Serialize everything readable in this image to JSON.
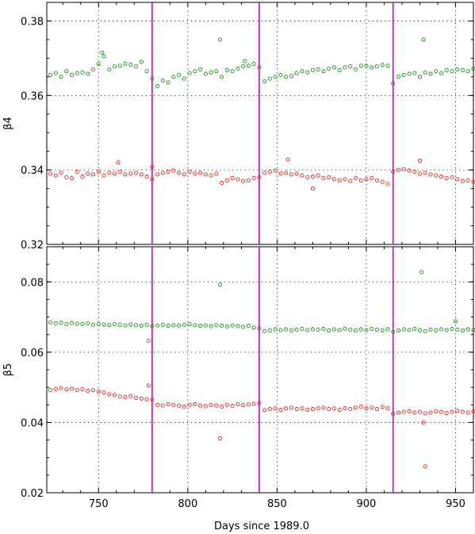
{
  "chart_data": {
    "type": "scatter",
    "xlabel": "Days since 1989.0",
    "xlim": [
      721,
      960
    ],
    "xticks": [
      750,
      800,
      850,
      900,
      950
    ],
    "vlines": [
      780,
      840,
      915
    ],
    "colors": {
      "green": "#1a8c1a",
      "red": "#e8201a",
      "vline": "#d000d0"
    },
    "panels": [
      {
        "ylabel": "β4",
        "ylim": [
          0.32,
          0.385
        ],
        "yticks": [
          "0.32",
          "0.34",
          "0.36",
          "0.38"
        ],
        "series": [
          {
            "color": "green",
            "x": [
              723,
              726,
              729,
              732,
              735,
              738,
              741,
              744,
              747,
              750,
              753,
              756,
              759,
              762,
              765,
              768,
              771,
              774,
              777,
              780,
              783,
              786,
              789,
              792,
              795,
              798,
              801,
              804,
              807,
              810,
              813,
              816,
              819,
              822,
              825,
              828,
              831,
              834,
              837,
              840,
              843,
              846,
              849,
              852,
              855,
              858,
              861,
              864,
              867,
              870,
              873,
              876,
              879,
              882,
              885,
              888,
              891,
              894,
              897,
              900,
              903,
              906,
              909,
              912,
              915,
              918,
              921,
              924,
              927,
              930,
              933,
              936,
              939,
              942,
              945,
              948,
              951,
              954,
              957,
              960,
              752,
              818,
              832,
              932
            ],
            "y": [
              0.3655,
              0.366,
              0.365,
              0.3665,
              0.3655,
              0.366,
              0.3662,
              0.3658,
              0.367,
              0.3685,
              0.3705,
              0.367,
              0.3678,
              0.368,
              0.3685,
              0.3683,
              0.3678,
              0.369,
              0.3665,
              0.3645,
              0.3625,
              0.364,
              0.3635,
              0.365,
              0.3655,
              0.3645,
              0.366,
              0.3665,
              0.367,
              0.3658,
              0.3662,
              0.3665,
              0.365,
              0.3668,
              0.3665,
              0.3672,
              0.3678,
              0.368,
              0.3685,
              0.3675,
              0.3638,
              0.3645,
              0.365,
              0.3655,
              0.365,
              0.3652,
              0.366,
              0.3665,
              0.3662,
              0.3668,
              0.367,
              0.3665,
              0.3672,
              0.3675,
              0.3668,
              0.3675,
              0.3678,
              0.367,
              0.368,
              0.368,
              0.3675,
              0.3678,
              0.3682,
              0.368,
              0.3632,
              0.365,
              0.3655,
              0.3658,
              0.366,
              0.365,
              0.3662,
              0.3658,
              0.3665,
              0.366,
              0.3668,
              0.3665,
              0.367,
              0.3668,
              0.3665,
              0.3672,
              0.3715,
              0.375,
              0.3692,
              0.375
            ]
          },
          {
            "color": "red",
            "x": [
              723,
              726,
              729,
              732,
              735,
              738,
              741,
              744,
              747,
              750,
              753,
              756,
              759,
              762,
              765,
              768,
              771,
              774,
              777,
              780,
              783,
              786,
              789,
              792,
              795,
              798,
              801,
              804,
              807,
              810,
              813,
              816,
              819,
              822,
              825,
              828,
              831,
              834,
              837,
              840,
              843,
              846,
              849,
              852,
              855,
              858,
              861,
              864,
              867,
              870,
              873,
              876,
              879,
              882,
              885,
              888,
              891,
              894,
              897,
              900,
              903,
              906,
              909,
              912,
              915,
              918,
              921,
              924,
              927,
              930,
              933,
              936,
              939,
              942,
              945,
              948,
              951,
              954,
              957,
              960,
              761,
              780,
              856,
              870,
              930
            ],
            "y": [
              0.339,
              0.3385,
              0.3392,
              0.338,
              0.3378,
              0.3395,
              0.3382,
              0.339,
              0.3388,
              0.3395,
              0.3385,
              0.3392,
              0.339,
              0.3395,
              0.3388,
              0.339,
              0.3392,
              0.3388,
              0.3382,
              0.3375,
              0.3388,
              0.3392,
              0.3395,
              0.3398,
              0.3392,
              0.3388,
              0.3395,
              0.339,
              0.3392,
              0.3388,
              0.3385,
              0.339,
              0.3365,
              0.3372,
              0.3378,
              0.3375,
              0.337,
              0.3372,
              0.3378,
              0.338,
              0.3392,
              0.3395,
              0.3398,
              0.339,
              0.3392,
              0.3388,
              0.339,
              0.3385,
              0.338,
              0.3382,
              0.3385,
              0.3378,
              0.338,
              0.3375,
              0.3372,
              0.3375,
              0.337,
              0.3378,
              0.3372,
              0.3375,
              0.3378,
              0.3372,
              0.3368,
              0.3362,
              0.3395,
              0.34,
              0.3402,
              0.3398,
              0.3395,
              0.339,
              0.3392,
              0.3388,
              0.3385,
              0.3382,
              0.3378,
              0.338,
              0.3375,
              0.337,
              0.3372,
              0.3368,
              0.342,
              0.3408,
              0.3428,
              0.335,
              0.3425
            ]
          }
        ]
      },
      {
        "ylabel": "β5",
        "ylim": [
          0.02,
          0.09
        ],
        "yticks": [
          "0.02",
          "0.04",
          "0.06",
          "0.08"
        ],
        "series": [
          {
            "color": "green",
            "x": [
              723,
              726,
              729,
              732,
              735,
              738,
              741,
              744,
              747,
              750,
              753,
              756,
              759,
              762,
              765,
              768,
              771,
              774,
              777,
              780,
              783,
              786,
              789,
              792,
              795,
              798,
              801,
              804,
              807,
              810,
              813,
              816,
              819,
              822,
              825,
              828,
              831,
              834,
              837,
              840,
              843,
              846,
              849,
              852,
              855,
              858,
              861,
              864,
              867,
              870,
              873,
              876,
              879,
              882,
              885,
              888,
              891,
              894,
              897,
              900,
              903,
              906,
              909,
              912,
              915,
              918,
              921,
              924,
              927,
              930,
              933,
              936,
              939,
              942,
              945,
              948,
              951,
              954,
              957,
              960,
              778,
              818,
              931,
              950
            ],
            "y": [
              0.0685,
              0.0682,
              0.0684,
              0.068,
              0.0683,
              0.0681,
              0.068,
              0.0682,
              0.0678,
              0.068,
              0.0679,
              0.0677,
              0.068,
              0.0678,
              0.0676,
              0.0679,
              0.0677,
              0.0675,
              0.0678,
              0.0674,
              0.0676,
              0.0678,
              0.0675,
              0.0677,
              0.0676,
              0.0678,
              0.068,
              0.0677,
              0.0675,
              0.0676,
              0.0674,
              0.0677,
              0.0675,
              0.0673,
              0.0676,
              0.0674,
              0.0672,
              0.0675,
              0.067,
              0.0668,
              0.066,
              0.0662,
              0.0665,
              0.0663,
              0.0665,
              0.0662,
              0.0664,
              0.0666,
              0.0663,
              0.0665,
              0.0664,
              0.0666,
              0.0662,
              0.0665,
              0.0663,
              0.0667,
              0.0664,
              0.0662,
              0.0665,
              0.0663,
              0.0666,
              0.0664,
              0.0662,
              0.0665,
              0.0658,
              0.0662,
              0.0665,
              0.0663,
              0.0666,
              0.0662,
              0.066,
              0.0664,
              0.0662,
              0.0665,
              0.0663,
              0.0666,
              0.0664,
              0.0662,
              0.0665,
              0.0663,
              0.0632,
              0.0792,
              0.0828,
              0.0688
            ]
          },
          {
            "color": "red",
            "x": [
              723,
              726,
              729,
              732,
              735,
              738,
              741,
              744,
              747,
              750,
              753,
              756,
              759,
              762,
              765,
              768,
              771,
              774,
              777,
              780,
              783,
              786,
              789,
              792,
              795,
              798,
              801,
              804,
              807,
              810,
              813,
              816,
              819,
              822,
              825,
              828,
              831,
              834,
              837,
              840,
              843,
              846,
              849,
              852,
              855,
              858,
              861,
              864,
              867,
              870,
              873,
              876,
              879,
              882,
              885,
              888,
              891,
              894,
              897,
              900,
              903,
              906,
              909,
              912,
              915,
              918,
              921,
              924,
              927,
              930,
              933,
              936,
              939,
              942,
              945,
              948,
              951,
              954,
              957,
              960,
              778,
              818,
              932,
              933
            ],
            "y": [
              0.0492,
              0.0495,
              0.0498,
              0.0494,
              0.0496,
              0.0492,
              0.0495,
              0.049,
              0.0492,
              0.0488,
              0.0485,
              0.048,
              0.0478,
              0.0474,
              0.0472,
              0.0475,
              0.047,
              0.0468,
              0.0466,
              0.0464,
              0.045,
              0.0448,
              0.0452,
              0.045,
              0.0448,
              0.0445,
              0.045,
              0.0452,
              0.0448,
              0.0446,
              0.045,
              0.0448,
              0.0445,
              0.045,
              0.0447,
              0.0452,
              0.0449,
              0.0451,
              0.0453,
              0.0455,
              0.0435,
              0.0438,
              0.044,
              0.0436,
              0.044,
              0.0442,
              0.0438,
              0.044,
              0.0436,
              0.0438,
              0.044,
              0.0442,
              0.0438,
              0.044,
              0.0436,
              0.044,
              0.0438,
              0.0442,
              0.0445,
              0.044,
              0.0442,
              0.0438,
              0.0444,
              0.044,
              0.0425,
              0.0428,
              0.043,
              0.0432,
              0.0428,
              0.043,
              0.0426,
              0.0428,
              0.0432,
              0.043,
              0.0427,
              0.043,
              0.0433,
              0.043,
              0.0428,
              0.0432,
              0.0505,
              0.0355,
              0.04,
              0.0275
            ]
          }
        ]
      }
    ]
  }
}
